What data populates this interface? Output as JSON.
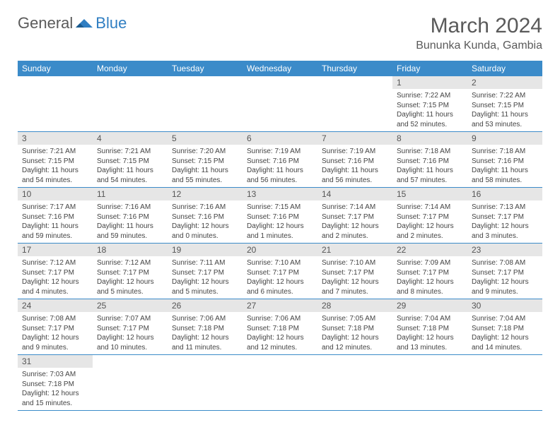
{
  "logo": {
    "text1": "General",
    "text2": "Blue"
  },
  "title": "March 2024",
  "location": "Bununka Kunda, Gambia",
  "colors": {
    "header_bg": "#3b8bc9",
    "header_text": "#ffffff",
    "daynum_bg": "#e6e6e6",
    "border": "#3b8bc9",
    "logo_gray": "#5a5a5a",
    "logo_blue": "#2f7ec2"
  },
  "weekdays": [
    "Sunday",
    "Monday",
    "Tuesday",
    "Wednesday",
    "Thursday",
    "Friday",
    "Saturday"
  ],
  "first_day_column": 5,
  "days": [
    {
      "n": 1,
      "sunrise": "7:22 AM",
      "sunset": "7:15 PM",
      "dl_h": 11,
      "dl_m": 52
    },
    {
      "n": 2,
      "sunrise": "7:22 AM",
      "sunset": "7:15 PM",
      "dl_h": 11,
      "dl_m": 53
    },
    {
      "n": 3,
      "sunrise": "7:21 AM",
      "sunset": "7:15 PM",
      "dl_h": 11,
      "dl_m": 54
    },
    {
      "n": 4,
      "sunrise": "7:21 AM",
      "sunset": "7:15 PM",
      "dl_h": 11,
      "dl_m": 54
    },
    {
      "n": 5,
      "sunrise": "7:20 AM",
      "sunset": "7:15 PM",
      "dl_h": 11,
      "dl_m": 55
    },
    {
      "n": 6,
      "sunrise": "7:19 AM",
      "sunset": "7:16 PM",
      "dl_h": 11,
      "dl_m": 56
    },
    {
      "n": 7,
      "sunrise": "7:19 AM",
      "sunset": "7:16 PM",
      "dl_h": 11,
      "dl_m": 56
    },
    {
      "n": 8,
      "sunrise": "7:18 AM",
      "sunset": "7:16 PM",
      "dl_h": 11,
      "dl_m": 57
    },
    {
      "n": 9,
      "sunrise": "7:18 AM",
      "sunset": "7:16 PM",
      "dl_h": 11,
      "dl_m": 58
    },
    {
      "n": 10,
      "sunrise": "7:17 AM",
      "sunset": "7:16 PM",
      "dl_h": 11,
      "dl_m": 59
    },
    {
      "n": 11,
      "sunrise": "7:16 AM",
      "sunset": "7:16 PM",
      "dl_h": 11,
      "dl_m": 59
    },
    {
      "n": 12,
      "sunrise": "7:16 AM",
      "sunset": "7:16 PM",
      "dl_h": 12,
      "dl_m": 0
    },
    {
      "n": 13,
      "sunrise": "7:15 AM",
      "sunset": "7:16 PM",
      "dl_h": 12,
      "dl_m": 1
    },
    {
      "n": 14,
      "sunrise": "7:14 AM",
      "sunset": "7:17 PM",
      "dl_h": 12,
      "dl_m": 2
    },
    {
      "n": 15,
      "sunrise": "7:14 AM",
      "sunset": "7:17 PM",
      "dl_h": 12,
      "dl_m": 2
    },
    {
      "n": 16,
      "sunrise": "7:13 AM",
      "sunset": "7:17 PM",
      "dl_h": 12,
      "dl_m": 3
    },
    {
      "n": 17,
      "sunrise": "7:12 AM",
      "sunset": "7:17 PM",
      "dl_h": 12,
      "dl_m": 4
    },
    {
      "n": 18,
      "sunrise": "7:12 AM",
      "sunset": "7:17 PM",
      "dl_h": 12,
      "dl_m": 5
    },
    {
      "n": 19,
      "sunrise": "7:11 AM",
      "sunset": "7:17 PM",
      "dl_h": 12,
      "dl_m": 5
    },
    {
      "n": 20,
      "sunrise": "7:10 AM",
      "sunset": "7:17 PM",
      "dl_h": 12,
      "dl_m": 6
    },
    {
      "n": 21,
      "sunrise": "7:10 AM",
      "sunset": "7:17 PM",
      "dl_h": 12,
      "dl_m": 7
    },
    {
      "n": 22,
      "sunrise": "7:09 AM",
      "sunset": "7:17 PM",
      "dl_h": 12,
      "dl_m": 8
    },
    {
      "n": 23,
      "sunrise": "7:08 AM",
      "sunset": "7:17 PM",
      "dl_h": 12,
      "dl_m": 9
    },
    {
      "n": 24,
      "sunrise": "7:08 AM",
      "sunset": "7:17 PM",
      "dl_h": 12,
      "dl_m": 9
    },
    {
      "n": 25,
      "sunrise": "7:07 AM",
      "sunset": "7:17 PM",
      "dl_h": 12,
      "dl_m": 10
    },
    {
      "n": 26,
      "sunrise": "7:06 AM",
      "sunset": "7:18 PM",
      "dl_h": 12,
      "dl_m": 11
    },
    {
      "n": 27,
      "sunrise": "7:06 AM",
      "sunset": "7:18 PM",
      "dl_h": 12,
      "dl_m": 12
    },
    {
      "n": 28,
      "sunrise": "7:05 AM",
      "sunset": "7:18 PM",
      "dl_h": 12,
      "dl_m": 12
    },
    {
      "n": 29,
      "sunrise": "7:04 AM",
      "sunset": "7:18 PM",
      "dl_h": 12,
      "dl_m": 13
    },
    {
      "n": 30,
      "sunrise": "7:04 AM",
      "sunset": "7:18 PM",
      "dl_h": 12,
      "dl_m": 14
    },
    {
      "n": 31,
      "sunrise": "7:03 AM",
      "sunset": "7:18 PM",
      "dl_h": 12,
      "dl_m": 15
    }
  ],
  "labels": {
    "sunrise": "Sunrise:",
    "sunset": "Sunset:",
    "daylight": "Daylight:",
    "hours": "hours",
    "and": "and",
    "minutes": "minutes."
  }
}
